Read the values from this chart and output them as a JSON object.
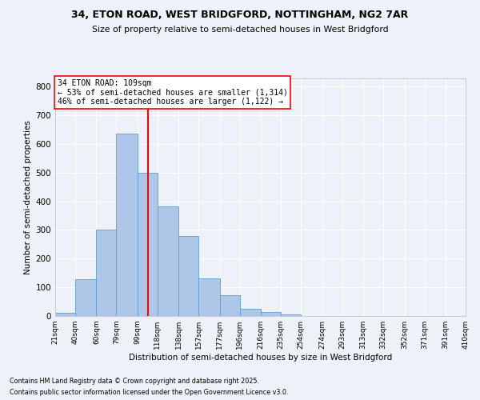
{
  "title1": "34, ETON ROAD, WEST BRIDGFORD, NOTTINGHAM, NG2 7AR",
  "title2": "Size of property relative to semi-detached houses in West Bridgford",
  "xlabel": "Distribution of semi-detached houses by size in West Bridgford",
  "ylabel": "Number of semi-detached properties",
  "footnote1": "Contains HM Land Registry data © Crown copyright and database right 2025.",
  "footnote2": "Contains public sector information licensed under the Open Government Licence v3.0.",
  "bin_labels": [
    "21sqm",
    "40sqm",
    "60sqm",
    "79sqm",
    "99sqm",
    "118sqm",
    "138sqm",
    "157sqm",
    "177sqm",
    "196sqm",
    "216sqm",
    "235sqm",
    "254sqm",
    "274sqm",
    "293sqm",
    "313sqm",
    "332sqm",
    "352sqm",
    "371sqm",
    "391sqm",
    "410sqm"
  ],
  "bar_heights": [
    10,
    128,
    300,
    635,
    500,
    383,
    278,
    130,
    73,
    25,
    13,
    5,
    0,
    0,
    0,
    0,
    0,
    0,
    0,
    0
  ],
  "bin_edges": [
    21,
    40,
    60,
    79,
    99,
    118,
    138,
    157,
    177,
    196,
    216,
    235,
    254,
    274,
    293,
    313,
    332,
    352,
    371,
    391,
    410
  ],
  "bar_color": "#aec6e8",
  "bar_edge_color": "#5a9fd4",
  "property_size": 109,
  "vline_color": "red",
  "annotation_text": "34 ETON ROAD: 109sqm\n← 53% of semi-detached houses are smaller (1,314)\n46% of semi-detached houses are larger (1,122) →",
  "annotation_box_color": "white",
  "annotation_box_edge": "red",
  "ylim": [
    0,
    830
  ],
  "yticks": [
    0,
    100,
    200,
    300,
    400,
    500,
    600,
    700,
    800
  ],
  "background_color": "#eef2f8",
  "grid_color": "white"
}
